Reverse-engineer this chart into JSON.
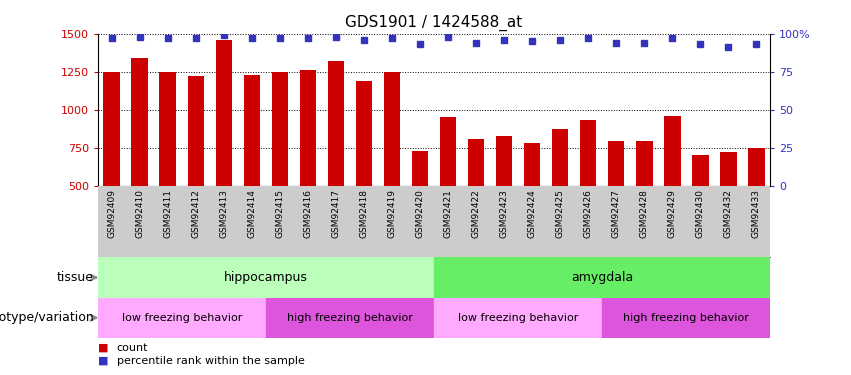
{
  "title": "GDS1901 / 1424588_at",
  "samples": [
    "GSM92409",
    "GSM92410",
    "GSM92411",
    "GSM92412",
    "GSM92413",
    "GSM92414",
    "GSM92415",
    "GSM92416",
    "GSM92417",
    "GSM92418",
    "GSM92419",
    "GSM92420",
    "GSM92421",
    "GSM92422",
    "GSM92423",
    "GSM92424",
    "GSM92425",
    "GSM92426",
    "GSM92427",
    "GSM92428",
    "GSM92429",
    "GSM92430",
    "GSM92432",
    "GSM92433"
  ],
  "counts": [
    1250,
    1340,
    1250,
    1220,
    1460,
    1230,
    1250,
    1260,
    1320,
    1190,
    1250,
    730,
    950,
    810,
    830,
    780,
    870,
    930,
    795,
    795,
    960,
    700,
    720,
    750
  ],
  "percentile": [
    97,
    98,
    97,
    97,
    99,
    97,
    97,
    97,
    98,
    96,
    97,
    93,
    98,
    94,
    96,
    95,
    96,
    97,
    94,
    94,
    97,
    93,
    91,
    93
  ],
  "ylim_left": [
    500,
    1500
  ],
  "ylim_right": [
    0,
    100
  ],
  "yticks_left": [
    500,
    750,
    1000,
    1250,
    1500
  ],
  "yticks_right": [
    0,
    25,
    50,
    75,
    100
  ],
  "bar_color": "#cc0000",
  "dot_color": "#3333bb",
  "tissue_hippocampus": {
    "label": "hippocampus",
    "start": 0,
    "end": 12,
    "color": "#bbffbb"
  },
  "tissue_amygdala": {
    "label": "amygdala",
    "start": 12,
    "end": 24,
    "color": "#66ee66"
  },
  "genotype_groups": [
    {
      "label": "low freezing behavior",
      "start": 0,
      "end": 6,
      "color": "#ffaaff"
    },
    {
      "label": "high freezing behavior",
      "start": 6,
      "end": 12,
      "color": "#dd55dd"
    },
    {
      "label": "low freezing behavior",
      "start": 12,
      "end": 18,
      "color": "#ffaaff"
    },
    {
      "label": "high freezing behavior",
      "start": 18,
      "end": 24,
      "color": "#dd55dd"
    }
  ],
  "tissue_label": "tissue",
  "genotype_label": "genotype/variation",
  "legend_count_label": "count",
  "legend_pct_label": "percentile rank within the sample",
  "xtick_bg_color": "#cccccc",
  "label_arrow_color": "#888888"
}
